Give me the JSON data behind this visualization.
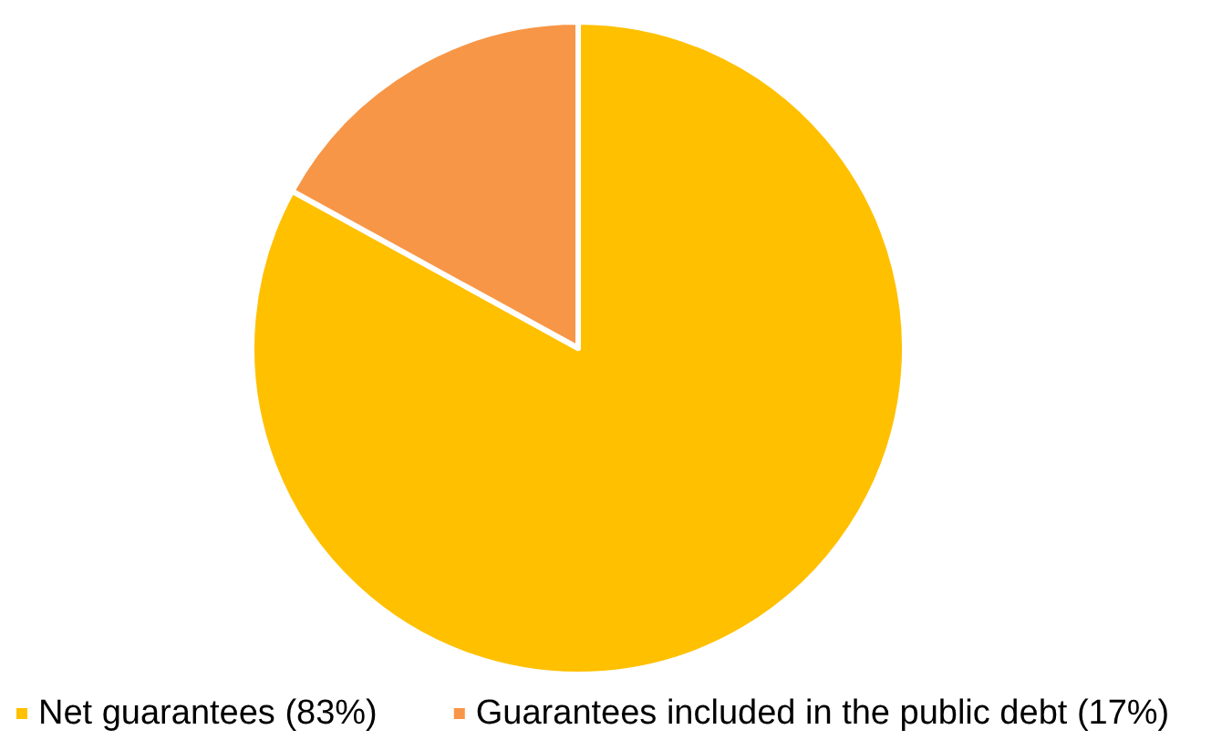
{
  "chart_data": {
    "type": "pie",
    "categories": [
      "Net guarantees (83%)",
      "Guarantees included in the public debt (17%)"
    ],
    "values": [
      83,
      17
    ],
    "colors": [
      "#ffc000",
      "#f79646"
    ],
    "legend": "bottom left"
  }
}
